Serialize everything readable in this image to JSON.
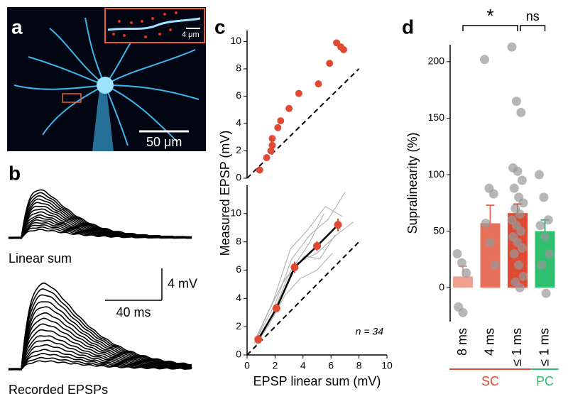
{
  "panel_labels": [
    "a",
    "b",
    "c",
    "d"
  ],
  "micrograph": {
    "scale_bar_label": "50 μm",
    "inset_scale_bar_label": "4 μm"
  },
  "chart_data": [
    {
      "type": "traces",
      "label": "Linear sum",
      "color": "#000000",
      "peaks": [
        6.0,
        5.6,
        5.2,
        4.8,
        4.4,
        4.0,
        3.6,
        3.2,
        2.8,
        2.5,
        2.2,
        1.9,
        1.6,
        1.3,
        1.0
      ],
      "scale_bar": {
        "y": 4,
        "y_label": "4 mV",
        "x": 40,
        "x_label": "40 ms"
      }
    },
    {
      "type": "traces",
      "label": "Recorded EPSPs",
      "color": "#000000",
      "peaks": [
        10.7,
        10.0,
        9.3,
        8.5,
        7.8,
        7.0,
        6.3,
        5.6,
        4.9,
        4.2,
        3.6,
        3.0,
        2.4,
        1.9,
        1.4,
        1.0
      ]
    },
    {
      "type": "scatter",
      "color": "#e04a32",
      "x": [
        0.9,
        1.4,
        1.7,
        1.8,
        1.8,
        2.2,
        2.4,
        3.0,
        3.7,
        5.1,
        5.9,
        6.4,
        6.7,
        6.9
      ],
      "values": [
        0.6,
        1.5,
        2.0,
        2.4,
        2.9,
        3.7,
        4.2,
        5.1,
        6.2,
        6.9,
        8.4,
        9.9,
        9.6,
        9.4
      ],
      "xlim": [
        0,
        10
      ],
      "ylim": [
        0,
        10.8
      ],
      "yticks": [
        0,
        2,
        4,
        6,
        8,
        10
      ],
      "identity_line": [
        0,
        8
      ]
    },
    {
      "type": "line",
      "color": "#e04a32",
      "x": [
        0.8,
        2.1,
        3.4,
        5.0,
        6.5
      ],
      "values": [
        1.1,
        3.3,
        6.2,
        7.7,
        9.2
      ],
      "errors": [
        0.3,
        0.3,
        0.4,
        0.35,
        0.45
      ],
      "series": [
        {
          "color": "#aaaaaa",
          "x": [
            0.5,
            1.5,
            2.5,
            3.5,
            4.5,
            5.5
          ],
          "values": [
            0.8,
            3.0,
            5.0,
            6.5,
            8.0,
            10.0
          ]
        },
        {
          "color": "#aaaaaa",
          "x": [
            0.6,
            1.8,
            2.9,
            4.1,
            5.2,
            6.3
          ],
          "values": [
            0.9,
            2.8,
            5.5,
            7.0,
            6.8,
            8.5
          ]
        },
        {
          "color": "#aaaaaa",
          "x": [
            0.7,
            2.0,
            3.2,
            4.5,
            5.8,
            7.0
          ],
          "values": [
            1.2,
            3.6,
            6.8,
            8.5,
            9.6,
            11.5
          ]
        },
        {
          "color": "#aaaaaa",
          "x": [
            0.5,
            1.6,
            2.7,
            3.8,
            5.0,
            6.1
          ],
          "values": [
            0.5,
            2.2,
            4.2,
            5.4,
            6.0,
            7.2
          ]
        },
        {
          "color": "#aaaaaa",
          "x": [
            0.8,
            2.2,
            3.6,
            5.0,
            6.4,
            7.6
          ],
          "values": [
            1.0,
            3.4,
            6.5,
            7.2,
            8.5,
            9.4
          ]
        },
        {
          "color": "#aaaaaa",
          "x": [
            0.6,
            1.9,
            3.1,
            4.3,
            5.6,
            6.8
          ],
          "values": [
            1.1,
            3.9,
            7.5,
            8.8,
            10.5,
            9.8
          ]
        }
      ],
      "xlim": [
        0,
        10
      ],
      "ylim": [
        0,
        12
      ],
      "xticks": [
        0,
        2,
        4,
        6,
        8,
        10
      ],
      "yticks": [
        0,
        2,
        4,
        6,
        8,
        10
      ],
      "identity_line": [
        0,
        8
      ],
      "xlabel": "EPSP linear sum (mV)",
      "ylabel": "Measured  EPSP (mV)",
      "annotation": "n = 34"
    },
    {
      "type": "bar",
      "ylabel": "Supralinearity (%)",
      "categories": [
        "8 ms",
        "4 ms",
        "≤ 1 ms",
        "≤ 1 ms"
      ],
      "values": [
        10,
        57,
        66,
        50
      ],
      "errors": [
        9,
        16,
        8,
        10
      ],
      "colors": [
        "#f0a090",
        "#e8705a",
        "#e04a32",
        "#2fbf6f"
      ],
      "points": [
        [
          30,
          22,
          13,
          -17,
          -22
        ],
        [
          202,
          88,
          83,
          57,
          40,
          20
        ],
        [
          213,
          165,
          155,
          106,
          103,
          95,
          88,
          80,
          75,
          70,
          65,
          60,
          55,
          50,
          45,
          40,
          35,
          30,
          20,
          10,
          5,
          0
        ],
        [
          100,
          80,
          60,
          55,
          45,
          30,
          20,
          -5
        ]
      ],
      "ylim": [
        -30,
        215
      ],
      "yticks": [
        0,
        50,
        100,
        150,
        200
      ],
      "groups": [
        {
          "label": "SC",
          "color": "#e04a32",
          "size": 3
        },
        {
          "label": "PC",
          "color": "#2fbf6f",
          "size": 1
        }
      ],
      "significance": [
        {
          "label": "*",
          "between": [
            0,
            2
          ]
        },
        {
          "label": "ns",
          "between": [
            2,
            3
          ]
        }
      ]
    }
  ]
}
